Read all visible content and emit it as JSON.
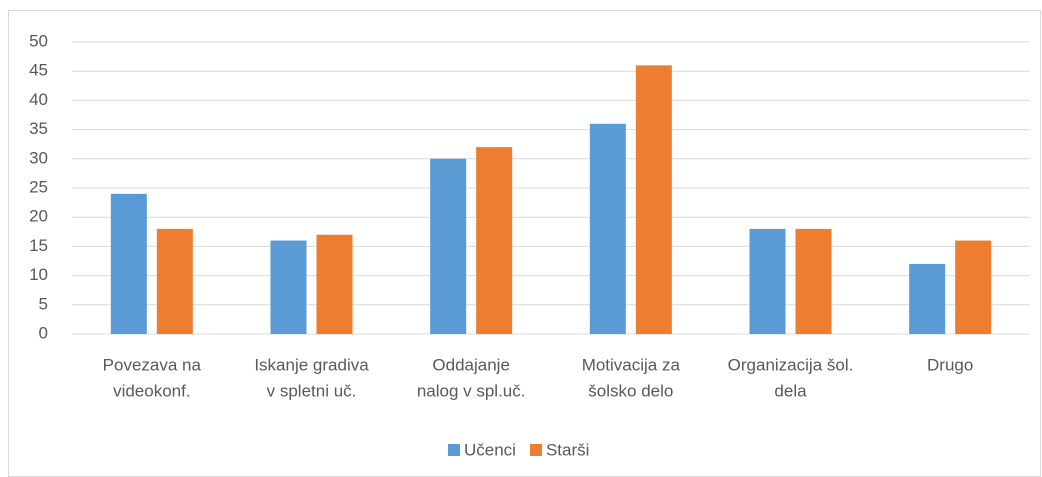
{
  "chart_data": {
    "type": "bar",
    "categories": [
      [
        "Povezava na",
        "videokonf."
      ],
      [
        "Iskanje gradiva",
        "v spletni uč."
      ],
      [
        "Oddajanje",
        "nalog v spl.uč."
      ],
      [
        "Motivacija za",
        "šolsko delo"
      ],
      [
        "Organizacija šol.",
        "dela"
      ],
      [
        "Drugo"
      ]
    ],
    "series": [
      {
        "name": "Učenci",
        "color": "#5b9bd5",
        "values": [
          24,
          16,
          30,
          36,
          18,
          12
        ]
      },
      {
        "name": "Starši",
        "color": "#ed7d31",
        "values": [
          18,
          17,
          32,
          46,
          18,
          16
        ]
      }
    ],
    "ylim": [
      0,
      50
    ],
    "yticks": [
      0,
      5,
      10,
      15,
      20,
      25,
      30,
      35,
      40,
      45,
      50
    ],
    "grid": true,
    "legend": "bottom"
  }
}
